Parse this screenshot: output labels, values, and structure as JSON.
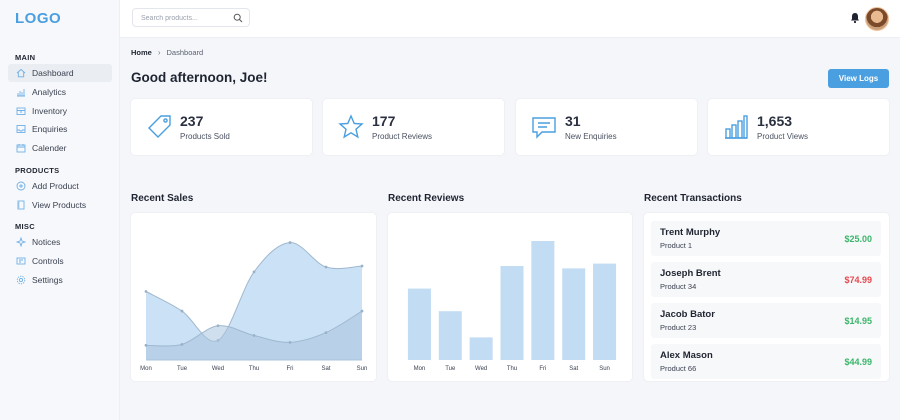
{
  "logo": "LOGO",
  "search": {
    "placeholder": "Search products..."
  },
  "sidebar": {
    "sections": [
      {
        "title": "MAIN",
        "items": [
          {
            "label": "Dashboard",
            "icon": "home-icon",
            "active": true
          },
          {
            "label": "Analytics",
            "icon": "bar-chart-icon"
          },
          {
            "label": "Inventory",
            "icon": "box-icon"
          },
          {
            "label": "Enquiries",
            "icon": "inbox-icon"
          },
          {
            "label": "Calender",
            "icon": "calendar-icon"
          }
        ]
      },
      {
        "title": "PRODUCTS",
        "items": [
          {
            "label": "Add Product",
            "icon": "plus-circle-icon"
          },
          {
            "label": "View Products",
            "icon": "list-icon"
          }
        ]
      },
      {
        "title": "MISC",
        "items": [
          {
            "label": "Notices",
            "icon": "sparkle-icon"
          },
          {
            "label": "Controls",
            "icon": "sliders-icon"
          },
          {
            "label": "Settings",
            "icon": "gear-icon"
          }
        ]
      }
    ]
  },
  "breadcrumb": {
    "home": "Home",
    "current": "Dashboard"
  },
  "greeting": "Good afternoon, Joe!",
  "view_logs_label": "View Logs",
  "stats": [
    {
      "value": "237",
      "label": "Products Sold",
      "icon": "tag-icon"
    },
    {
      "value": "177",
      "label": "Product Reviews",
      "icon": "star-icon"
    },
    {
      "value": "31",
      "label": "New Enquiries",
      "icon": "message-icon"
    },
    {
      "value": "1,653",
      "label": "Product Views",
      "icon": "bar-chart-icon"
    }
  ],
  "sections": {
    "sales": "Recent Sales",
    "reviews": "Recent Reviews",
    "transactions": "Recent Transactions"
  },
  "chart_data": [
    {
      "type": "area",
      "categories": [
        "Mon",
        "Tue",
        "Wed",
        "Thu",
        "Fri",
        "Sat",
        "Sun"
      ],
      "series": [
        {
          "values": [
            70,
            50,
            20,
            90,
            120,
            95,
            96
          ]
        },
        {
          "values": [
            15,
            16,
            35,
            25,
            18,
            28,
            50
          ]
        }
      ],
      "ylim": [
        0,
        140
      ],
      "grid": false
    },
    {
      "type": "bar",
      "categories": [
        "Mon",
        "Tue",
        "Wed",
        "Thu",
        "Fri",
        "Sat",
        "Sun"
      ],
      "values": [
        60,
        41,
        19,
        79,
        100,
        77,
        81
      ],
      "ylim": [
        0,
        100
      ],
      "grid": false
    }
  ],
  "transactions": [
    {
      "name": "Trent Murphy",
      "product": "Product 1",
      "amount": "$25.00",
      "color": "#3bb56a"
    },
    {
      "name": "Joseph Brent",
      "product": "Product 34",
      "amount": "$74.99",
      "color": "#e5484d"
    },
    {
      "name": "Jacob Bator",
      "product": "Product 23",
      "amount": "$14.95",
      "color": "#3bb56a"
    },
    {
      "name": "Alex Mason",
      "product": "Product 66",
      "amount": "$44.99",
      "color": "#3bb56a"
    }
  ],
  "colors": {
    "accent": "#4a9fe0",
    "chart_fill": "#c2dcf3",
    "chart_fill_dark": "#a9c4de",
    "positive": "#3bb56a",
    "negative": "#e5484d"
  }
}
